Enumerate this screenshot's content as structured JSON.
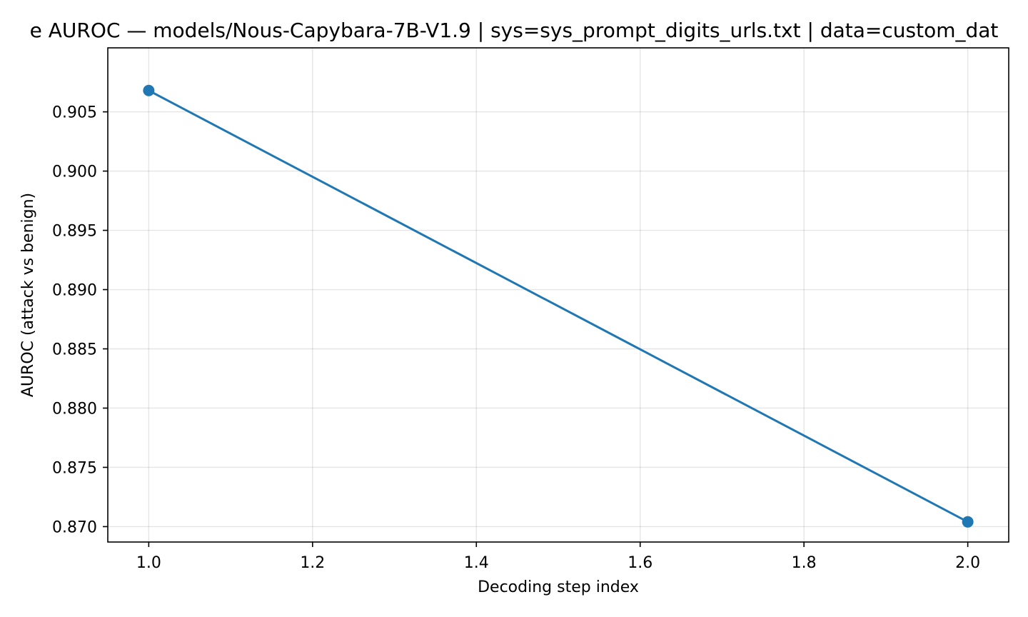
{
  "chart_data": {
    "type": "line",
    "title": "e AUROC — models/Nous-Capybara-7B-V1.9 | sys=sys_prompt_digits_urls.txt | data=custom_dat",
    "xlabel": "Decoding step index",
    "ylabel": "AUROC (attack vs benign)",
    "xlim": [
      0.95,
      2.05
    ],
    "ylim": [
      0.8687,
      0.9104
    ],
    "xticks": [
      1.0,
      1.2,
      1.4,
      1.6,
      1.8,
      2.0
    ],
    "xtick_labels": [
      "1.0",
      "1.2",
      "1.4",
      "1.6",
      "1.8",
      "2.0"
    ],
    "yticks": [
      0.87,
      0.875,
      0.88,
      0.885,
      0.89,
      0.895,
      0.9,
      0.905
    ],
    "ytick_labels": [
      "0.870",
      "0.875",
      "0.880",
      "0.885",
      "0.890",
      "0.895",
      "0.900",
      "0.905"
    ],
    "grid": true,
    "series": [
      {
        "color": "#1f77b4",
        "marker": "circle",
        "x": [
          1.0,
          2.0
        ],
        "y": [
          0.9068,
          0.8704
        ]
      }
    ]
  }
}
